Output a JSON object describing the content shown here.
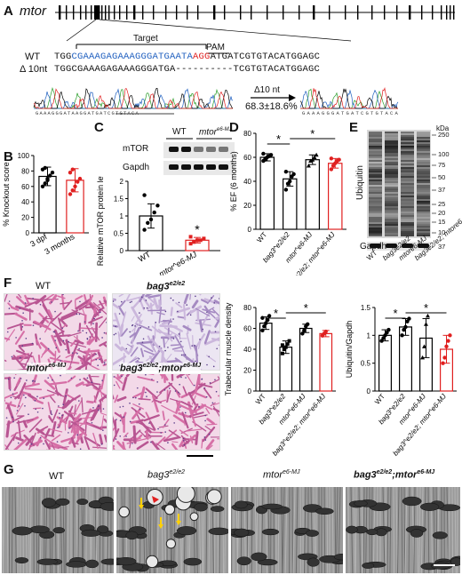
{
  "panels": {
    "a": "A",
    "b": "B",
    "c": "C",
    "d": "D",
    "e": "E",
    "f": "F",
    "g": "G"
  },
  "panel_a": {
    "gene": "mtor",
    "target_label": "Target",
    "pam_label": "PAM",
    "wt_label": "WT",
    "del_label": "Δ 10nt",
    "wt_seq_pre": "TGG",
    "wt_seq_target": "CGAAAGAGAAAGGGATGAATA",
    "wt_seq_pam": "AGG",
    "wt_seq_post": "ATGATCGTGTACATGGAGC",
    "del_seq_left": "TGGCGAAAGAGAAAGGGATGA",
    "del_seq_right": "TCGTGTACATGGAGC",
    "arrow_label": "Δ10 nt",
    "efficiency": "68.3±18.6%",
    "chrom_left_seq": "GAAAGGGATAAGGATGATCGTGTACA",
    "chrom_right_seq": "GAAAGGGATGATCGTGTACA"
  },
  "chart_data": [
    {
      "id": "B",
      "type": "bar",
      "ylabel": "% Knockout score",
      "categories": [
        "3 dpf",
        "3 months"
      ],
      "values": [
        73,
        68
      ],
      "errors": [
        12,
        15
      ],
      "ylim": [
        0,
        100
      ],
      "yticks": [
        0,
        20,
        40,
        60,
        80,
        100
      ],
      "colors": [
        "#000000",
        "#e02020"
      ],
      "points": [
        [
          60,
          64,
          70,
          74,
          78,
          82,
          84,
          68
        ],
        [
          50,
          55,
          60,
          66,
          70,
          78,
          82
        ]
      ]
    },
    {
      "id": "C",
      "type": "bar",
      "ylabel": "Relative mTOR protein level",
      "categories": [
        "WT",
        "mtor^e6-MJ"
      ],
      "values": [
        1.0,
        0.3
      ],
      "errors": [
        0.35,
        0.08
      ],
      "ylim": [
        0,
        2.0
      ],
      "yticks": [
        0,
        0.5,
        1.0,
        1.5,
        2.0
      ],
      "colors": [
        "#000000",
        "#e02020"
      ],
      "significance": "*",
      "points": [
        [
          0.6,
          0.8,
          0.9,
          1.1,
          1.3,
          1.6
        ],
        [
          0.2,
          0.25,
          0.3,
          0.3,
          0.35,
          0.4,
          0.25
        ]
      ]
    },
    {
      "id": "D",
      "type": "bar",
      "ylabel": "% EF (6 months)",
      "categories": [
        "WT",
        "bag3^e2/e2",
        "mtor^e6-MJ",
        "bag3^e2/e2; mtor^e6-MJ"
      ],
      "values": [
        60,
        42,
        58,
        55
      ],
      "errors": [
        3,
        6,
        4,
        4
      ],
      "ylim": [
        0,
        80
      ],
      "yticks": [
        0,
        20,
        40,
        60,
        80
      ],
      "colors": [
        "#000000",
        "#000000",
        "#000000",
        "#e02020"
      ],
      "significance": [
        "*",
        "*"
      ],
      "points": [
        [
          57,
          59,
          60,
          61,
          62,
          63,
          58
        ],
        [
          33,
          38,
          40,
          44,
          46,
          48
        ],
        [
          53,
          57,
          58,
          60,
          62
        ],
        [
          50,
          53,
          55,
          57,
          58,
          59
        ]
      ]
    },
    {
      "id": "F-trabecular",
      "type": "bar",
      "ylabel": "Trabecular muscle density",
      "categories": [
        "WT",
        "bag3^e2/e2",
        "mtor^e6-MJ",
        "bag3^e2/e2; mtor^e6-MJ"
      ],
      "values": [
        65,
        42,
        60,
        55
      ],
      "errors": [
        6,
        6,
        4,
        3
      ],
      "ylim": [
        0,
        80
      ],
      "yticks": [
        0,
        20,
        40,
        60,
        80
      ],
      "colors": [
        "#000000",
        "#000000",
        "#000000",
        "#e02020"
      ],
      "significance": [
        "*",
        "*"
      ],
      "points": [
        [
          58,
          62,
          65,
          68,
          72,
          70
        ],
        [
          36,
          40,
          42,
          45,
          48,
          44
        ],
        [
          55,
          58,
          62,
          64
        ],
        [
          53,
          55,
          57
        ]
      ]
    },
    {
      "id": "F-ubiquitin",
      "type": "bar",
      "ylabel": "Ubiquitin/Gapdh",
      "categories": [
        "WT",
        "bag3^e2/e2",
        "mtor^e6-MJ",
        "bag3^e2/e2; mtor^e6-MJ"
      ],
      "values": [
        1.0,
        1.15,
        0.95,
        0.75
      ],
      "errors": [
        0.1,
        0.15,
        0.35,
        0.25
      ],
      "ylim": [
        0,
        1.5
      ],
      "yticks": [
        0,
        0.5,
        1.0,
        1.5
      ],
      "colors": [
        "#000000",
        "#000000",
        "#000000",
        "#e02020"
      ],
      "significance": [
        "*",
        "*"
      ],
      "points": [
        [
          0.9,
          0.95,
          1.0,
          1.05,
          1.1
        ],
        [
          1.0,
          1.1,
          1.15,
          1.25,
          1.3
        ],
        [
          0.6,
          0.8,
          1.2,
          1.35
        ],
        [
          0.5,
          0.6,
          0.8,
          0.9,
          1.0
        ]
      ]
    }
  ],
  "panel_c_blot": {
    "wt_label": "WT",
    "mut_label": "mtor",
    "mut_sup": "e6-MJ",
    "band1": "mTOR",
    "band2": "Gapdh"
  },
  "panel_e_blot": {
    "kda_label": "kDa",
    "markers": [
      "250",
      "100",
      "75",
      "50",
      "37",
      "25",
      "20",
      "15",
      "10"
    ],
    "gapdh_marker": "37",
    "protein_label": "Ubiquitin",
    "loading_label": "Gapdh",
    "lanes": [
      "WT",
      "bag3e2/e2",
      "mtore6-MJ",
      "bag3e2/e2; mtore6-MJ"
    ]
  },
  "panel_f_labels": {
    "wt": "WT",
    "bag3": "bag3",
    "bag3_sup": "e2/e2",
    "mtor": "mtor",
    "mtor_sup": "e6-MJ",
    "double": "bag3",
    "double_sup1": "e2/e2",
    "double_mid": ";mtor",
    "double_sup2": "e6-MJ"
  },
  "panel_g_labels": {
    "wt": "WT",
    "bag3": "bag3",
    "bag3_sup": "e2/e2",
    "mtor": "mtor",
    "mtor_sup": "e6-MJ",
    "double": "bag3",
    "double_sup1": "e2/e2",
    "double_mid": ";mtor",
    "double_sup2": "e6-MJ"
  },
  "colors": {
    "target_blue": "#1f5fbf",
    "pam_red": "#e02020",
    "accent_red": "#e02020",
    "he_pink": "#d97fb0",
    "he_purple": "#8a5aa8"
  }
}
